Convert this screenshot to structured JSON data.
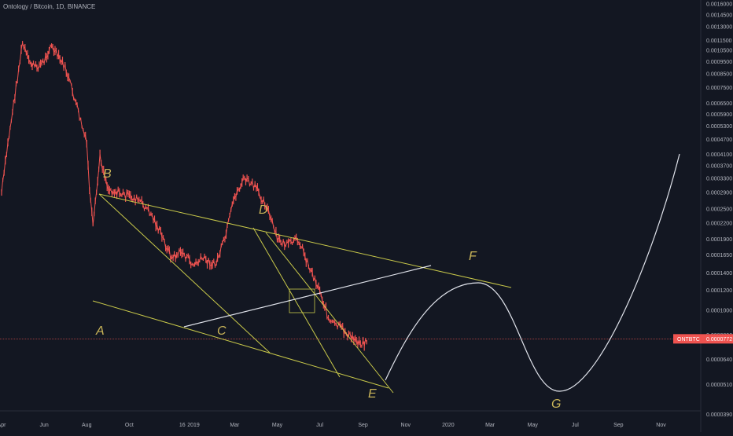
{
  "chart_title": "Ontology / Bitcoin, 1D, BINANCE",
  "colors": {
    "background": "#131722",
    "candles": "#ef5350",
    "trend_lines": "#c9c94a",
    "projection": "#e0e3eb",
    "labels": "#c9b458",
    "axis_text": "#b2b5be",
    "price_tag": "#ef5350"
  },
  "chart_data": {
    "type": "line",
    "title": "Ontology / Bitcoin, 1D, BINANCE",
    "yscale": "log",
    "ylim": [
      3.784e-05,
      0.0016
    ],
    "y_ticks": [
      "0.0016000",
      "0.0014500",
      "0.0013000",
      "0.0011500",
      "0.0010500",
      "0.0009500",
      "0.0008500",
      "0.0007500",
      "0.0006500",
      "0.0005900",
      "0.0005300",
      "0.0004700",
      "0.0004100",
      "0.0003700",
      "0.0003300",
      "0.0002900",
      "0.0002500",
      "0.0002200",
      "0.0001900",
      "0.0001650",
      "0.0001400",
      "0.0001200",
      "0.0001000",
      "0.0000800",
      "0.0000640",
      "0.0000510",
      "0.0000390"
    ],
    "x_ticks": [
      "Apr",
      "Jun",
      "Aug",
      "Oct",
      "16",
      "2019",
      "Mar",
      "May",
      "Jul",
      "Sep",
      "Nov",
      "2020",
      "Mar",
      "May",
      "Jul",
      "Sep",
      "Nov"
    ],
    "series": [
      {
        "x": [
          "2018-04-01",
          "2018-04-10",
          "2018-04-20",
          "2018-05-01",
          "2018-05-10",
          "2018-05-20",
          "2018-06-01",
          "2018-06-10",
          "2018-06-20",
          "2018-07-01",
          "2018-07-10",
          "2018-07-20",
          "2018-08-01",
          "2018-08-05",
          "2018-08-10",
          "2018-08-20",
          "2018-09-01",
          "2018-09-15",
          "2018-10-01",
          "2018-10-15",
          "2018-11-01",
          "2018-11-15",
          "2018-12-01",
          "2018-12-15",
          "2019-01-01",
          "2019-01-15",
          "2019-02-01",
          "2019-02-15",
          "2019-03-01",
          "2019-03-15",
          "2019-04-01",
          "2019-04-15",
          "2019-05-01",
          "2019-05-15",
          "2019-06-01",
          "2019-06-15",
          "2019-07-01",
          "2019-07-15",
          "2019-08-01",
          "2019-08-15",
          "2019-09-01",
          "2019-09-08"
        ],
        "values": [
          0.00029,
          0.00045,
          0.0007,
          0.00112,
          0.00095,
          0.0009,
          0.00095,
          0.0011,
          0.001,
          0.0009,
          0.00075,
          0.0006,
          0.00045,
          0.0003,
          0.00021,
          0.0004,
          0.0003,
          0.00029,
          0.00028,
          0.00027,
          0.00024,
          0.0002,
          0.00016,
          0.00017,
          0.00015,
          0.00016,
          0.00015,
          0.00019,
          0.00028,
          0.00033,
          0.0003,
          0.00026,
          0.00019,
          0.00018,
          0.00019,
          0.00015,
          0.00012,
          9e-05,
          8.5e-05,
          7.8e-05,
          7.4e-05,
          7.72e-05
        ]
      }
    ],
    "wave_labels": [
      "A",
      "B",
      "C",
      "D",
      "E",
      "F",
      "G"
    ],
    "last_price": "0.0000772",
    "symbol": "ONTBTC"
  }
}
